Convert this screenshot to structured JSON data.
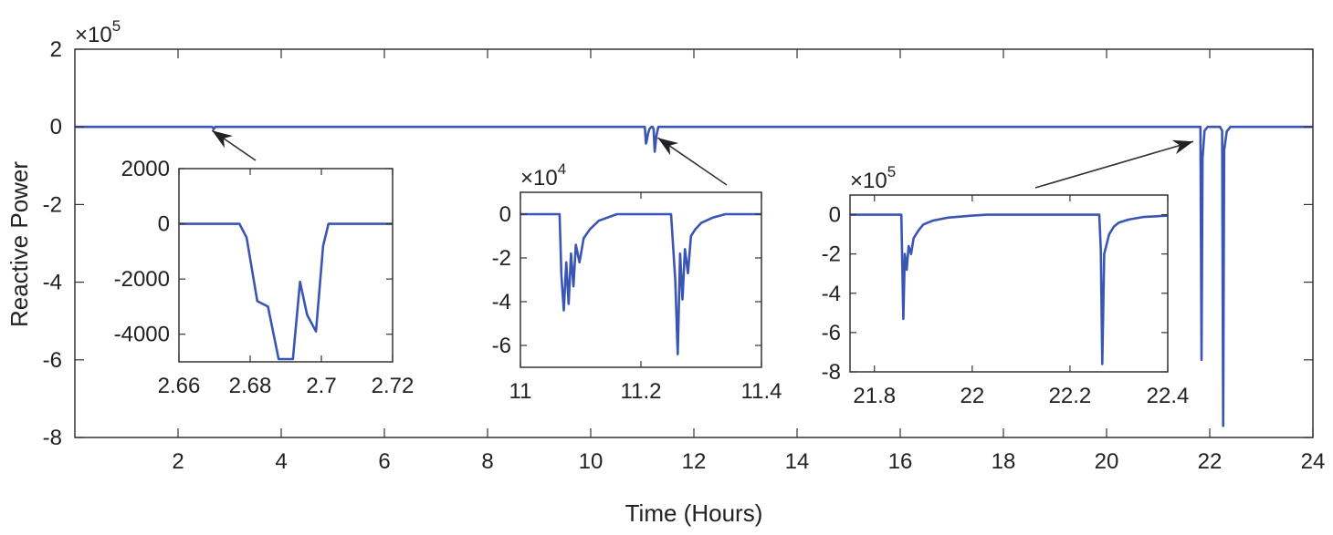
{
  "chart_data": {
    "type": "line",
    "xlabel": "Time (Hours)",
    "ylabel": "Reactive Power",
    "colors": {
      "series": "#3a55b4",
      "axis": "#333333"
    },
    "main": {
      "xlim": [
        0,
        24
      ],
      "ylim": [
        -800000,
        200000
      ],
      "exponent_label": "×10",
      "exponent_power": "5",
      "y_scale": 100000,
      "xticks": [
        2,
        4,
        6,
        8,
        10,
        12,
        14,
        16,
        18,
        20,
        22,
        24
      ],
      "yticks": [
        2,
        0,
        -2,
        -4,
        -6,
        -8
      ],
      "series": [
        {
          "x": [
            0,
            2.66,
            2.68,
            2.69,
            2.7,
            2.72,
            11.05,
            11.07,
            11.09,
            11.11,
            11.14,
            11.18,
            11.2,
            11.22,
            11.24,
            11.27,
            11.31,
            21.82,
            21.84,
            21.86,
            21.9,
            21.96,
            22.2,
            22.24,
            22.26,
            22.28,
            22.33,
            22.4,
            24
          ],
          "y": [
            0,
            0,
            -2000,
            -6000,
            -4000,
            0,
            0,
            -43000,
            -33000,
            -18000,
            -5000,
            0,
            0,
            -6000,
            -64000,
            -25000,
            0,
            0,
            -600000,
            -80000,
            -10000,
            0,
            0,
            -10000,
            -770000,
            -60000,
            -12000,
            0,
            0
          ]
        }
      ]
    },
    "insets": [
      {
        "xlim": [
          2.66,
          2.72
        ],
        "ylim": [
          -5000,
          2000
        ],
        "exponent_label": "",
        "exponent_power": "",
        "y_scale": 1,
        "xticks": [
          2.66,
          2.68,
          2.7,
          2.72
        ],
        "yticks": [
          2000,
          0,
          -2000,
          -4000
        ],
        "series": [
          {
            "x": [
              2.66,
              2.677,
              2.679,
              2.682,
              2.685,
              2.688,
              2.692,
              2.694,
              2.696,
              2.6985,
              2.7005,
              2.702,
              2.72
            ],
            "y": [
              0,
              0,
              -500,
              -2800,
              -3000,
              -4900,
              -4900,
              -2100,
              -3300,
              -3900,
              -800,
              0,
              0
            ]
          }
        ]
      },
      {
        "xlim": [
          11,
          11.4
        ],
        "ylim": [
          -70000,
          10000
        ],
        "exponent_label": "×10",
        "exponent_power": "4",
        "y_scale": 10000,
        "xticks": [
          11,
          11.2,
          11.4
        ],
        "yticks": [
          0,
          -2,
          -4,
          -6
        ],
        "series": [
          {
            "x": [
              11,
              11.065,
              11.068,
              11.072,
              11.076,
              11.08,
              11.084,
              11.088,
              11.092,
              11.098,
              11.105,
              11.115,
              11.13,
              11.16,
              11.25,
              11.257,
              11.261,
              11.265,
              11.269,
              11.273,
              11.278,
              11.283,
              11.29,
              11.3,
              11.32,
              11.34,
              11.4
            ],
            "y": [
              0,
              0,
              -28000,
              -44000,
              -22000,
              -41000,
              -18000,
              -33000,
              -14000,
              -22000,
              -11000,
              -7000,
              -3000,
              0,
              0,
              -30000,
              -64000,
              -18000,
              -39000,
              -16000,
              -27000,
              -10000,
              -7000,
              -4000,
              -1500,
              0,
              0
            ]
          }
        ]
      },
      {
        "xlim": [
          21.75,
          22.4
        ],
        "ylim": [
          -800000,
          100000
        ],
        "exponent_label": "×10",
        "exponent_power": "5",
        "y_scale": 100000,
        "xticks": [
          21.8,
          22,
          22.2,
          22.4
        ],
        "yticks": [
          0,
          -2,
          -4,
          -6,
          -8
        ],
        "series": [
          {
            "x": [
              21.75,
              21.855,
              21.859,
              21.862,
              21.866,
              21.87,
              21.875,
              21.88,
              21.89,
              21.9,
              21.92,
              21.95,
              22,
              22.03,
              22.26,
              22.263,
              22.266,
              22.27,
              22.275,
              22.28,
              22.29,
              22.3,
              22.32,
              22.35,
              22.4
            ],
            "y": [
              0,
              0,
              -530000,
              -200000,
              -280000,
              -160000,
              -200000,
              -120000,
              -80000,
              -50000,
              -30000,
              -15000,
              -5000,
              0,
              0,
              -180000,
              -760000,
              -200000,
              -150000,
              -100000,
              -60000,
              -40000,
              -25000,
              -12000,
              -5000
            ]
          }
        ]
      }
    ]
  }
}
